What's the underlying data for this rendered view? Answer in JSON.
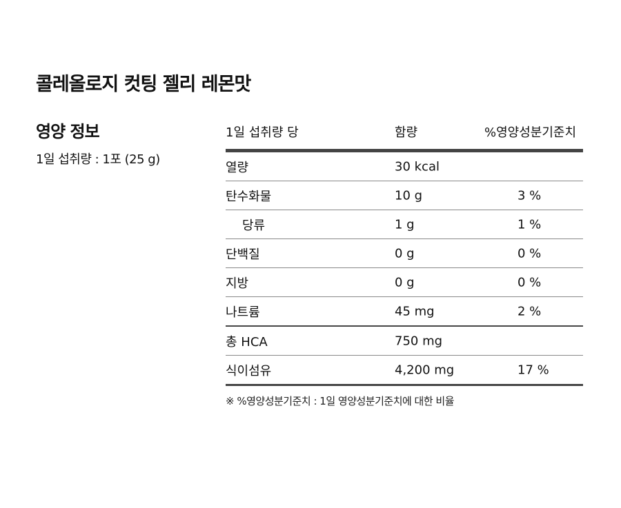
{
  "header": {
    "title": "콜레올로지 컷팅 젤리 레몬맛"
  },
  "nutrition": {
    "title": "영양 정보",
    "serving": "1일 섭취량 : 1포 (25 g)",
    "table": {
      "columns": [
        "1일 섭취량 당",
        "함량",
        "%영양성분기준치"
      ],
      "rows": [
        [
          "열량",
          "30 kcal"
        ],
        [
          "탄수화물",
          "10 g",
          "3 %"
        ],
        [
          "당류",
          "1 g",
          "1 %"
        ],
        [
          "단백질",
          "0 g",
          "0 %"
        ],
        [
          "지방",
          "0 g",
          "0 %"
        ],
        [
          "나트륨",
          "45 mg",
          "2 %"
        ],
        [
          "총 HCA",
          "750 mg"
        ],
        [
          "식이섬유",
          "4,200 mg",
          "17 %"
        ]
      ]
    },
    "note": "※ %영양성분기준치 : 1일 영양성분기준치에 대한 비율"
  }
}
